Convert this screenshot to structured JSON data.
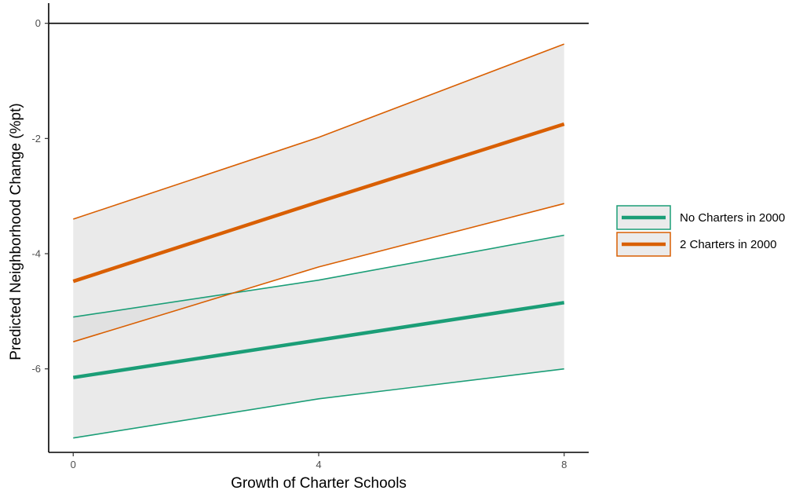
{
  "chart_data": {
    "type": "line",
    "title": "",
    "xlabel": "Growth of Charter Schools",
    "ylabel": "Predicted Neighborhood Change (%pt)",
    "x": [
      0,
      4,
      8
    ],
    "xlim": [
      -0.4,
      8.4
    ],
    "ylim": [
      -7.45,
      0.35
    ],
    "x_ticks": [
      0,
      4,
      8
    ],
    "y_ticks": [
      0,
      -2,
      -4,
      -6
    ],
    "x_tick_labels": [
      "0",
      "4",
      "8"
    ],
    "y_tick_labels": [
      "0",
      "-2",
      "-4",
      "-6"
    ],
    "reference_line_y": 0,
    "grid": false,
    "legend_position": "right",
    "series": [
      {
        "name": "No Charters in 2000",
        "color": "#1b9e77",
        "values": [
          -6.15,
          -5.5,
          -4.85
        ],
        "lower": [
          -7.2,
          -6.52,
          -6.0
        ],
        "upper": [
          -5.1,
          -4.46,
          -3.68
        ]
      },
      {
        "name": "2 Charters in 2000",
        "color": "#d95f02",
        "values": [
          -4.48,
          -3.1,
          -1.75
        ],
        "lower": [
          -5.53,
          -4.23,
          -3.13
        ],
        "upper": [
          -3.4,
          -1.98,
          -0.36
        ]
      }
    ],
    "band_color": "#d9d9d9"
  }
}
